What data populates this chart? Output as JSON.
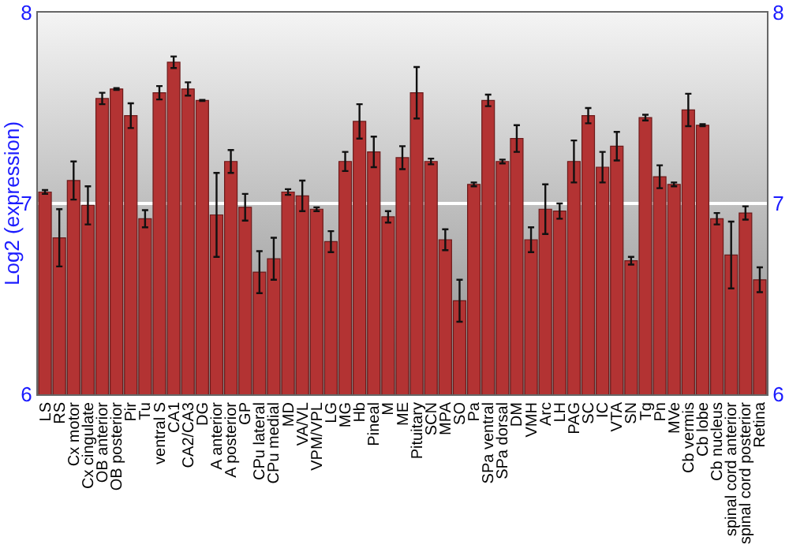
{
  "chart_data": {
    "type": "bar",
    "ylabel": "Log2 (expression)",
    "categories": [
      "LS",
      "RS",
      "Cx motor",
      "Cx cingulate",
      "OB anterior",
      "OB posterior",
      "Pir",
      "Tu",
      "ventral S",
      "CA1",
      "CA2/CA3",
      "DG",
      "A anterior",
      "A posterior",
      "GP",
      "CPu lateral",
      "CPu medial",
      "MD",
      "VA/VL",
      "VPM/VPL",
      "LG",
      "MG",
      "Hb",
      "Pineal",
      "M",
      "ME",
      "Pituitary",
      "SCN",
      "MPA",
      "SO",
      "Pa",
      "SPa ventral",
      "SPa dorsal",
      "DM",
      "VMH",
      "Arc",
      "LH",
      "PAG",
      "SC",
      "IC",
      "VTA",
      "SN",
      "Tg",
      "Pn",
      "MVe",
      "Cb vermis",
      "Cb lobe",
      "Cb nucleus",
      "spinal cord anterior",
      "spinal cord posterior",
      "Retina"
    ],
    "values": [
      7.06,
      6.82,
      7.12,
      6.99,
      7.55,
      7.6,
      7.46,
      6.92,
      7.58,
      7.74,
      7.6,
      7.54,
      6.94,
      7.22,
      6.98,
      6.64,
      6.71,
      7.06,
      7.04,
      6.97,
      6.8,
      7.22,
      7.43,
      7.27,
      6.93,
      7.24,
      7.58,
      7.22,
      6.81,
      6.49,
      7.1,
      7.54,
      7.22,
      7.34,
      6.81,
      6.97,
      6.96,
      7.22,
      7.46,
      7.19,
      7.3,
      6.7,
      7.45,
      7.14,
      7.1,
      7.49,
      7.41,
      6.92,
      6.73,
      6.95,
      6.6
    ],
    "errors": [
      0.01,
      0.15,
      0.1,
      0.1,
      0.03,
      0.005,
      0.065,
      0.045,
      0.035,
      0.03,
      0.035,
      0.003,
      0.22,
      0.06,
      0.07,
      0.11,
      0.11,
      0.015,
      0.08,
      0.01,
      0.055,
      0.05,
      0.09,
      0.08,
      0.03,
      0.06,
      0.135,
      0.015,
      0.055,
      0.11,
      0.01,
      0.03,
      0.01,
      0.07,
      0.065,
      0.13,
      0.04,
      0.11,
      0.04,
      0.08,
      0.075,
      0.02,
      0.015,
      0.06,
      0.01,
      0.085,
      0.005,
      0.03,
      0.175,
      0.035,
      0.065
    ],
    "color": "#b33333",
    "ylim": [
      6,
      8
    ],
    "yticks": [
      6,
      7,
      8
    ],
    "y2lim": [
      6,
      8
    ],
    "y2ticks": [
      6,
      7,
      8
    ],
    "grid": "y"
  }
}
